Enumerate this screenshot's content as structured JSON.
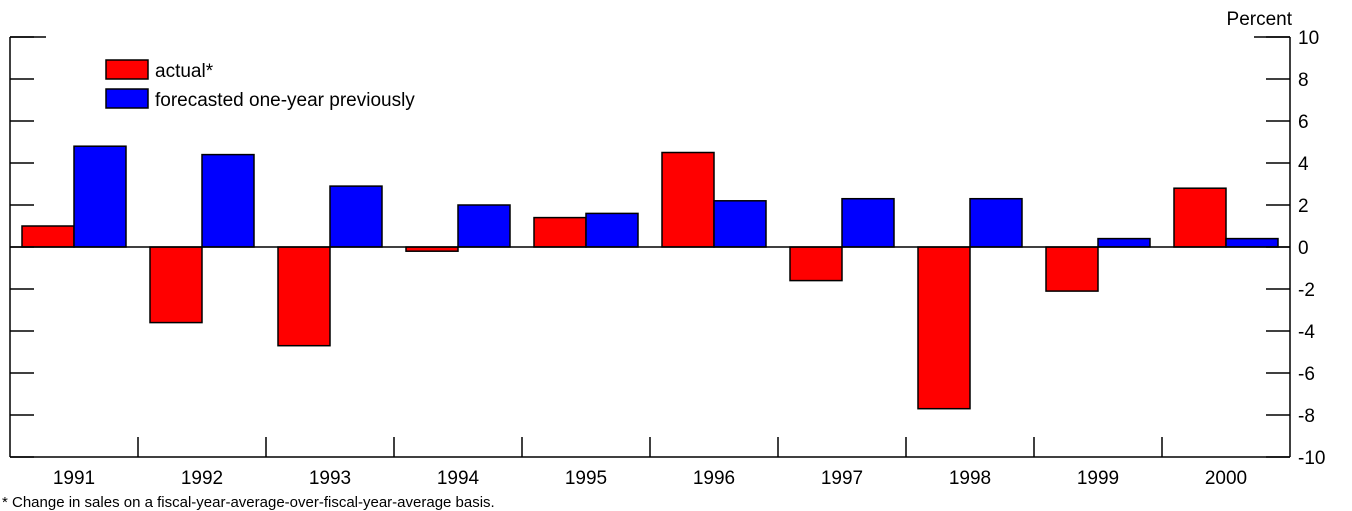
{
  "chart_data": {
    "type": "bar",
    "categories": [
      "1991",
      "1992",
      "1993",
      "1994",
      "1995",
      "1996",
      "1997",
      "1998",
      "1999",
      "2000"
    ],
    "series": [
      {
        "name": "actual*",
        "color": "#ff0000",
        "values": [
          1.0,
          -3.6,
          -4.7,
          -0.2,
          1.4,
          4.5,
          -1.6,
          -7.7,
          -2.1,
          2.8
        ]
      },
      {
        "name": "forecasted one-year previously",
        "color": "#0000ff",
        "values": [
          4.8,
          4.4,
          2.9,
          2.0,
          1.6,
          2.2,
          2.3,
          2.3,
          0.4,
          0.4
        ]
      }
    ],
    "ylabel": "Percent",
    "ylim": [
      -10,
      10
    ],
    "yticks": [
      10,
      8,
      6,
      4,
      2,
      0,
      -2,
      -4,
      -6,
      -8,
      -10
    ],
    "legend_position": "top-left",
    "grid": false,
    "footnote": "* Change in sales on a fiscal-year-average-over-fiscal-year-average basis."
  }
}
